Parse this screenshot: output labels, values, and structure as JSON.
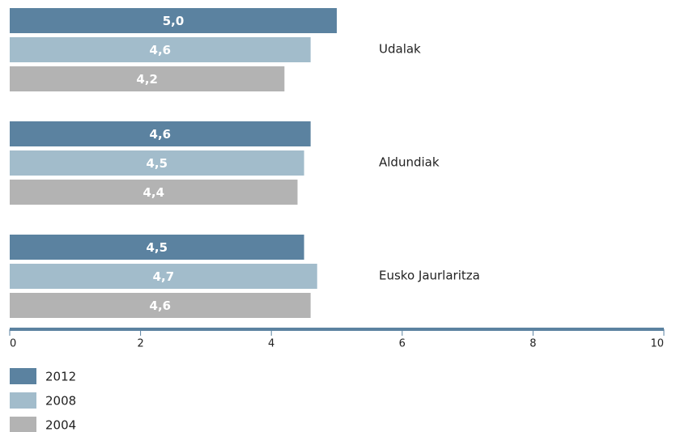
{
  "chart_data": {
    "type": "hbar",
    "categories": [
      "Udalak",
      "Aldundiak",
      "Eusko Jaurlaritza"
    ],
    "series": [
      {
        "name": "2012",
        "color": "#5b82a0",
        "values": [
          5.0,
          4.6,
          4.5
        ],
        "value_labels": [
          "5,0",
          "4,6",
          "4,5"
        ]
      },
      {
        "name": "2008",
        "color": "#a2bccb",
        "values": [
          4.6,
          4.5,
          4.7
        ],
        "value_labels": [
          "4,6",
          "4,5",
          "4,7"
        ]
      },
      {
        "name": "2004",
        "color": "#b3b3b3",
        "values": [
          4.2,
          4.4,
          4.6
        ],
        "value_labels": [
          "4,2",
          "4,4",
          "4,6"
        ]
      }
    ],
    "xlim": [
      0,
      10
    ],
    "xticks": [
      0,
      2,
      4,
      6,
      8,
      10
    ],
    "legend": "bottom-left"
  }
}
